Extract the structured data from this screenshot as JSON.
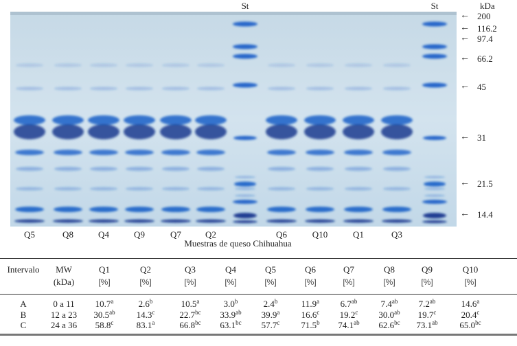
{
  "gel": {
    "lanes": [
      "Q5",
      "Q8",
      "Q4",
      "Q9",
      "Q7",
      "Q2",
      "St",
      "Q6",
      "Q10",
      "Q1",
      "Q3",
      "St"
    ],
    "standard_label": "St",
    "unit_label": "kDa",
    "markers": [
      "200",
      "116.2",
      "97.4",
      "66.2",
      "45",
      "31",
      "21.5",
      "14.4"
    ],
    "arrow_icon": "left-arrow",
    "caption": "Muestras de queso Chihuahua",
    "colors": {
      "background": "#cfe0ec",
      "band": "#1a5fc8",
      "dark_band": "#0b2e8a"
    }
  },
  "table": {
    "headers": [
      {
        "top": "Intervalo",
        "bottom": ""
      },
      {
        "top": "MW",
        "bottom": "(kDa)"
      },
      {
        "top": "Q1",
        "bottom": "[%]"
      },
      {
        "top": "Q2",
        "bottom": "[%]"
      },
      {
        "top": "Q3",
        "bottom": "[%]"
      },
      {
        "top": "Q4",
        "bottom": "[%]"
      },
      {
        "top": "Q5",
        "bottom": "[%]"
      },
      {
        "top": "Q6",
        "bottom": "[%]"
      },
      {
        "top": "Q7",
        "bottom": "[%]"
      },
      {
        "top": "Q8",
        "bottom": "[%]"
      },
      {
        "top": "Q9",
        "bottom": "[%]"
      },
      {
        "top": "Q10",
        "bottom": "[%]"
      }
    ],
    "rows": [
      {
        "interval": "A",
        "mw": "0 a 11",
        "values": [
          {
            "v": "10.7",
            "s": "a"
          },
          {
            "v": "2.6",
            "s": "b"
          },
          {
            "v": "10.5",
            "s": "a"
          },
          {
            "v": "3.0",
            "s": "b"
          },
          {
            "v": "2.4",
            "s": "b"
          },
          {
            "v": "11.9",
            "s": "a"
          },
          {
            "v": "6.7",
            "s": "ab"
          },
          {
            "v": "7.4",
            "s": "ab"
          },
          {
            "v": "7.2",
            "s": "ab"
          },
          {
            "v": "14.6",
            "s": "a"
          }
        ]
      },
      {
        "interval": "B",
        "mw": "12 a 23",
        "values": [
          {
            "v": "30.5",
            "s": "ab"
          },
          {
            "v": "14.3",
            "s": "c"
          },
          {
            "v": "22.7",
            "s": "bc"
          },
          {
            "v": "33.9",
            "s": "ab"
          },
          {
            "v": "39.9",
            "s": "a"
          },
          {
            "v": "16.6",
            "s": "c"
          },
          {
            "v": "19.2",
            "s": "c"
          },
          {
            "v": "30.0",
            "s": "ab"
          },
          {
            "v": "19.7",
            "s": "c"
          },
          {
            "v": "20.4",
            "s": "c"
          }
        ]
      },
      {
        "interval": "C",
        "mw": "24 a 36",
        "values": [
          {
            "v": "58.8",
            "s": "c"
          },
          {
            "v": "83.1",
            "s": "a"
          },
          {
            "v": "66.8",
            "s": "bc"
          },
          {
            "v": "63.1",
            "s": "bc"
          },
          {
            "v": "57.7",
            "s": "c"
          },
          {
            "v": "71.5",
            "s": "b"
          },
          {
            "v": "74.1",
            "s": "ab"
          },
          {
            "v": "62.6",
            "s": "bc"
          },
          {
            "v": "73.1",
            "s": "ab"
          },
          {
            "v": "65.0",
            "s": "bc"
          }
        ]
      }
    ]
  }
}
